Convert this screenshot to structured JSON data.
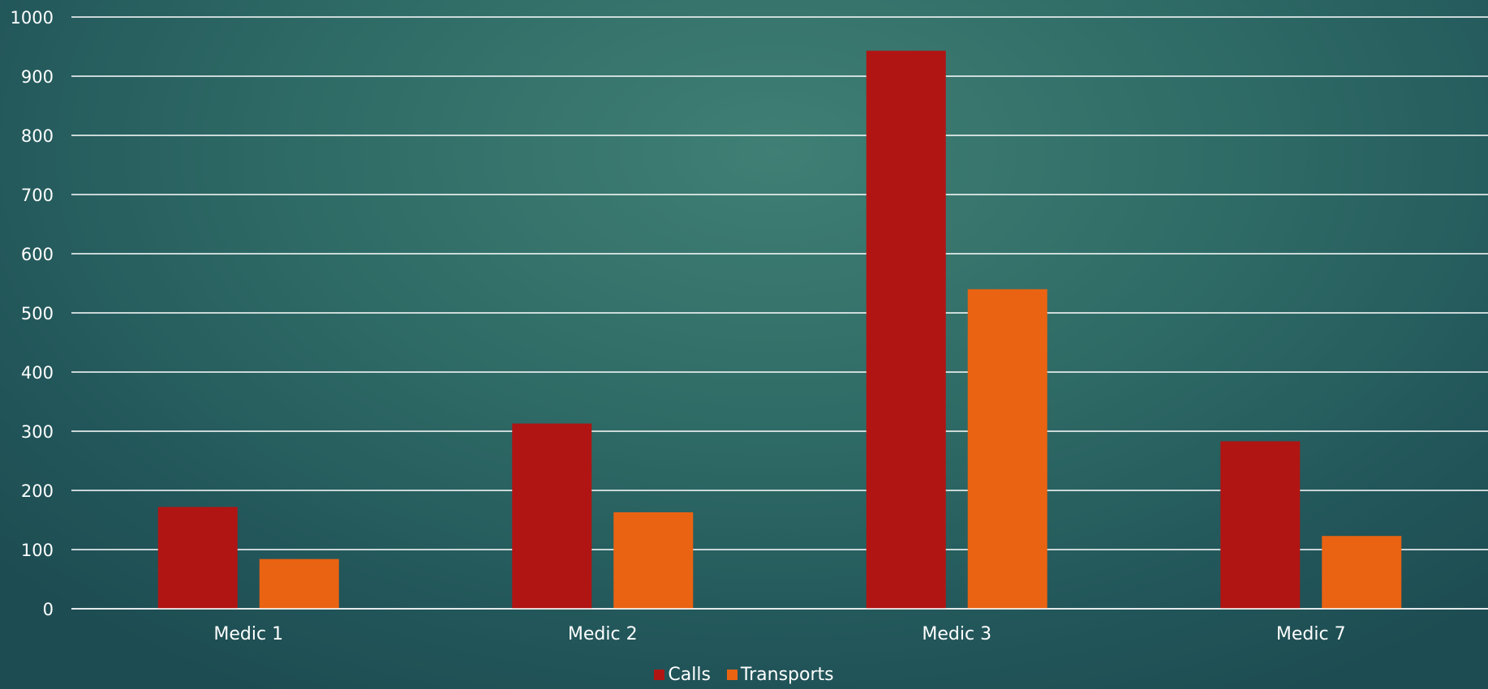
{
  "chart_data": {
    "type": "bar",
    "categories": [
      "Medic 1",
      "Medic 2",
      "Medic 3",
      "Medic 7"
    ],
    "series": [
      {
        "name": "Calls",
        "values": [
          172,
          313,
          943,
          283
        ],
        "color": "#b01513"
      },
      {
        "name": "Transports",
        "values": [
          84,
          163,
          540,
          123
        ],
        "color": "#ea6312"
      }
    ],
    "ylim": [
      0,
      1000
    ],
    "yticks": [
      0,
      100,
      200,
      300,
      400,
      500,
      600,
      700,
      800,
      900,
      1000
    ],
    "grid": true,
    "legend_position": "bottom"
  }
}
